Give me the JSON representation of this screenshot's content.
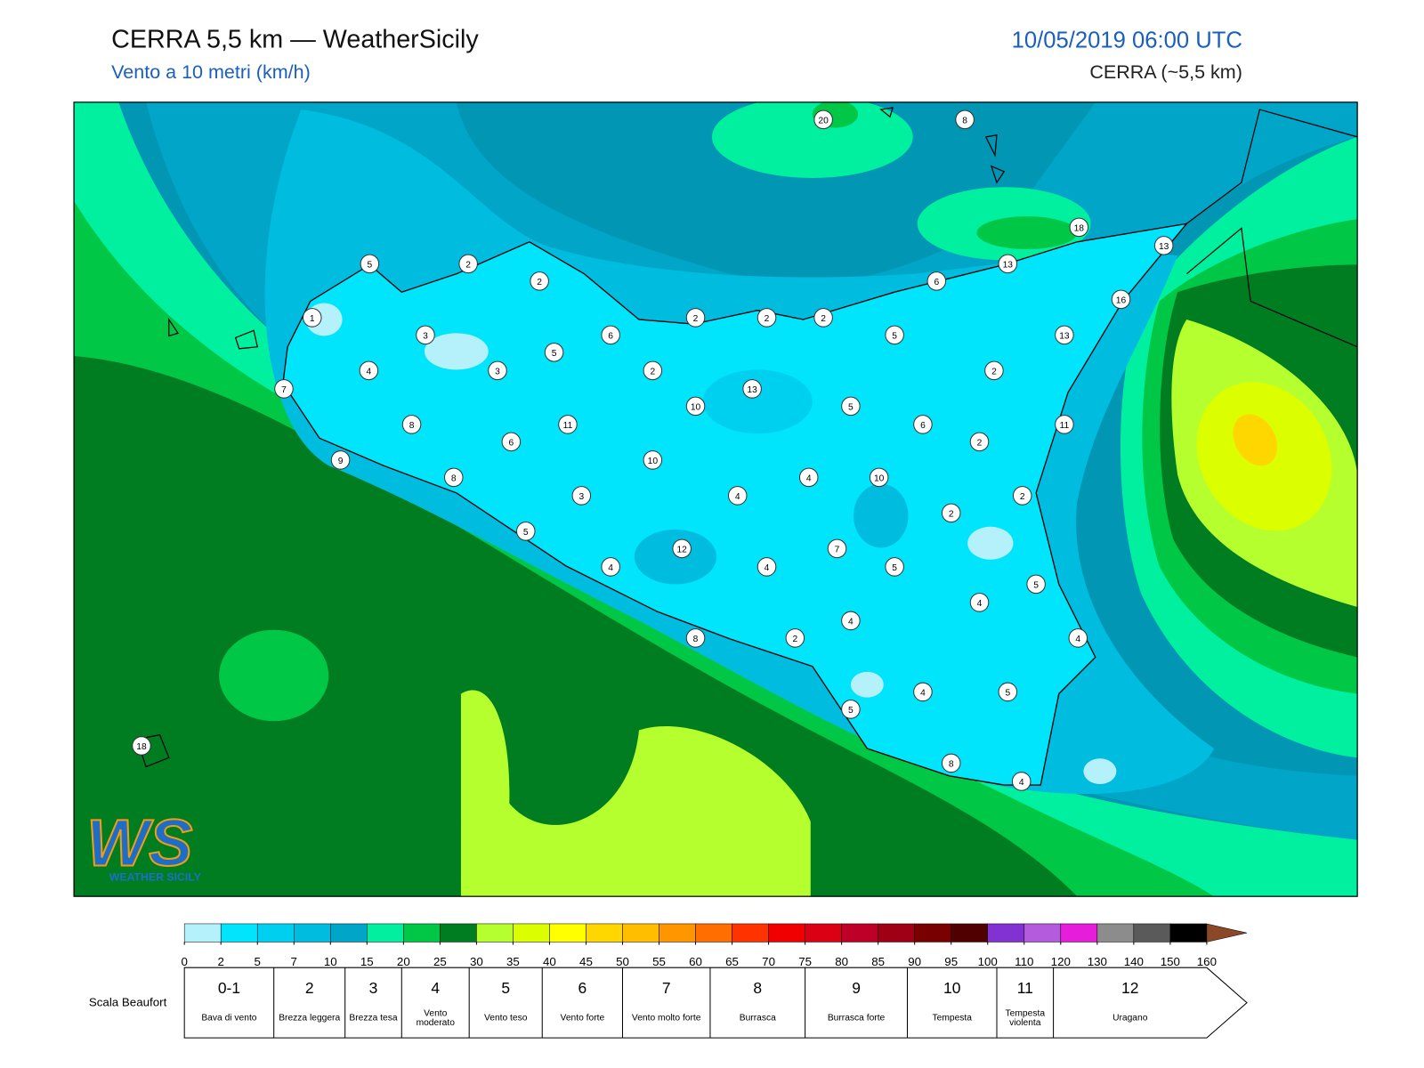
{
  "header": {
    "title": "CERRA 5,5 km — WeatherSicily",
    "subtitle": "Vento a 10 metri (km/h)",
    "datetime": "10/05/2019 06:00 UTC",
    "model": "CERRA (~5,5 km)"
  },
  "map": {
    "station_values": [
      20,
      8,
      18,
      13,
      13,
      16,
      6,
      5,
      2,
      2,
      1,
      3,
      5,
      6,
      2,
      2,
      2,
      5,
      13,
      4,
      3,
      2,
      2,
      7,
      13,
      10,
      5,
      8,
      11,
      6,
      11,
      2,
      9,
      6,
      10,
      4,
      10,
      8,
      3,
      4,
      2,
      2,
      5,
      12,
      7,
      4,
      4,
      5,
      5,
      4,
      4,
      4,
      8,
      2,
      4,
      5,
      5,
      18,
      8,
      4
    ]
  },
  "colorbar": {
    "ticks": [
      0,
      2,
      5,
      7,
      10,
      15,
      20,
      25,
      30,
      35,
      40,
      45,
      50,
      55,
      60,
      65,
      70,
      75,
      80,
      85,
      90,
      95,
      100,
      110,
      120,
      130,
      140,
      150,
      160
    ],
    "colors": [
      "#b5f1fb",
      "#00e5fb",
      "#00d0f0",
      "#00bde0",
      "#00a5c8",
      "#00f0a0",
      "#00c846",
      "#007d20",
      "#b4ff2d",
      "#dcff00",
      "#ffff00",
      "#ffd700",
      "#ffbe00",
      "#ff9600",
      "#ff6e00",
      "#ff3200",
      "#f00000",
      "#dc0014",
      "#be0028",
      "#a00014",
      "#780000",
      "#500000",
      "#8232d2",
      "#b45adc",
      "#e61edc",
      "#8c8c8c",
      "#5a5a5a",
      "#000000",
      "#8c4628",
      "#d28c50"
    ]
  },
  "beaufort": {
    "label": "Scala Beaufort",
    "levels": [
      {
        "force": "0-1",
        "name": "Bava di vento"
      },
      {
        "force": "2",
        "name": "Brezza leggera"
      },
      {
        "force": "3",
        "name": "Brezza tesa"
      },
      {
        "force": "4",
        "name": "Vento moderato"
      },
      {
        "force": "5",
        "name": "Vento teso"
      },
      {
        "force": "6",
        "name": "Vento forte"
      },
      {
        "force": "7",
        "name": "Vento molto forte"
      },
      {
        "force": "8",
        "name": "Burrasca"
      },
      {
        "force": "9",
        "name": "Burrasca forte"
      },
      {
        "force": "10",
        "name": "Tempesta"
      },
      {
        "force": "11",
        "name": "Tempesta violenta"
      },
      {
        "force": "12",
        "name": "Uragano"
      }
    ]
  },
  "logo": {
    "mark": "WS",
    "text": "WEATHER SICILY"
  }
}
